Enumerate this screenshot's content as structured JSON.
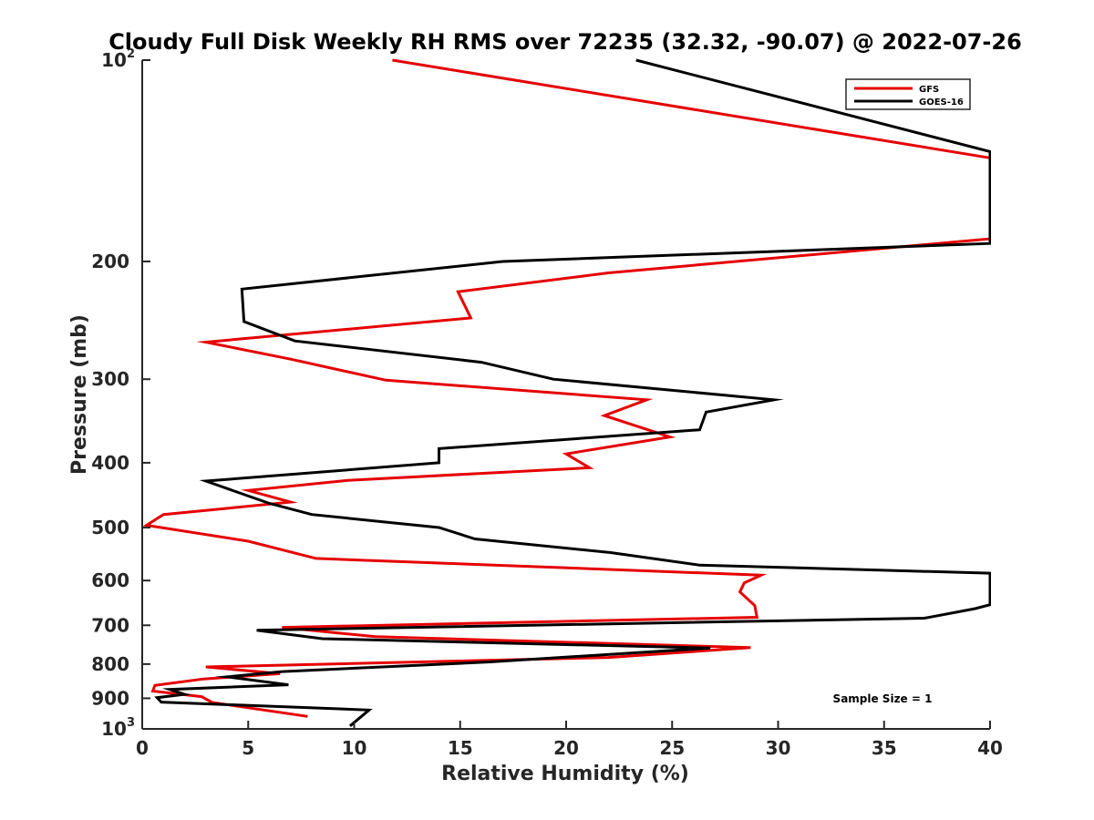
{
  "chart_data": {
    "type": "line",
    "title": "Cloudy Full Disk Weekly RH RMS over 72235 (32.32, -90.07) @ 2022-07-26",
    "xlabel": "Relative Humidity (%)",
    "ylabel": "Pressure (mb)",
    "xlim": [
      0,
      40
    ],
    "ylim": [
      100,
      1000
    ],
    "yscale": "log",
    "yreversed": true,
    "grid": false,
    "legend_position": "top-right",
    "x_ticks": [
      {
        "value": 0,
        "label": "0"
      },
      {
        "value": 5,
        "label": "5"
      },
      {
        "value": 10,
        "label": "10"
      },
      {
        "value": 15,
        "label": "15"
      },
      {
        "value": 20,
        "label": "20"
      },
      {
        "value": 25,
        "label": "25"
      },
      {
        "value": 30,
        "label": "30"
      },
      {
        "value": 35,
        "label": "35"
      },
      {
        "value": 40,
        "label": "40"
      }
    ],
    "y_ticks": [
      {
        "value": 100,
        "label": "10",
        "sup": "2"
      },
      {
        "value": 200,
        "label": "200"
      },
      {
        "value": 300,
        "label": "300"
      },
      {
        "value": 400,
        "label": "400"
      },
      {
        "value": 500,
        "label": "500"
      },
      {
        "value": 600,
        "label": "600"
      },
      {
        "value": 700,
        "label": "700"
      },
      {
        "value": 800,
        "label": "800"
      },
      {
        "value": 900,
        "label": "900"
      },
      {
        "value": 1000,
        "label": "10",
        "sup": "3"
      }
    ],
    "annotation": "Sample Size = 1",
    "series": [
      {
        "name": "GFS",
        "color": "#e60000",
        "points": [
          [
            11.8,
            100
          ],
          [
            40,
            140
          ],
          [
            40,
            185
          ],
          [
            22,
            208
          ],
          [
            14.9,
            222
          ],
          [
            15.5,
            243
          ],
          [
            3.0,
            264
          ],
          [
            7,
            280
          ],
          [
            11.5,
            301
          ],
          [
            23.8,
            322
          ],
          [
            21.8,
            340
          ],
          [
            24.9,
            366
          ],
          [
            20.0,
            388
          ],
          [
            21.1,
            407
          ],
          [
            9.7,
            425
          ],
          [
            5.0,
            440
          ],
          [
            7.0,
            458
          ],
          [
            1.0,
            478
          ],
          [
            0.2,
            496
          ],
          [
            5,
            524
          ],
          [
            8.2,
            556
          ],
          [
            29.2,
            589
          ],
          [
            28.4,
            605
          ],
          [
            28.2,
            624
          ],
          [
            28.9,
            654
          ],
          [
            29.0,
            681
          ],
          [
            6.6,
            705
          ],
          [
            11.0,
            728
          ],
          [
            28.7,
            756
          ],
          [
            22,
            782
          ],
          [
            3,
            808
          ],
          [
            6.5,
            827
          ],
          [
            2.9,
            842
          ],
          [
            0.6,
            861
          ],
          [
            0.5,
            878
          ],
          [
            2.8,
            895
          ],
          [
            3.3,
            913
          ],
          [
            7.8,
            958
          ]
        ]
      },
      {
        "name": "GOES-16",
        "color": "#000000",
        "points": [
          [
            23.3,
            100
          ],
          [
            40,
            137
          ],
          [
            40,
            188
          ],
          [
            17.0,
            200
          ],
          [
            4.7,
            220
          ],
          [
            4.8,
            246
          ],
          [
            7.2,
            263
          ],
          [
            16.0,
            283
          ],
          [
            19.4,
            300
          ],
          [
            29.8,
            322
          ],
          [
            26.6,
            336
          ],
          [
            26.3,
            357
          ],
          [
            14.0,
            381
          ],
          [
            14.0,
            400
          ],
          [
            3.0,
            426
          ],
          [
            6.0,
            460
          ],
          [
            8.0,
            478
          ],
          [
            14.0,
            500
          ],
          [
            15.7,
            520
          ],
          [
            22.1,
            545
          ],
          [
            26.3,
            569
          ],
          [
            40,
            585
          ],
          [
            40,
            652
          ],
          [
            39.3,
            661
          ],
          [
            36.9,
            683
          ],
          [
            5.4,
            712
          ],
          [
            8.5,
            733
          ],
          [
            26.8,
            757
          ],
          [
            16.4,
            794
          ],
          [
            6.6,
            821
          ],
          [
            4.0,
            836
          ],
          [
            6.9,
            859
          ],
          [
            1.3,
            873
          ],
          [
            2.0,
            888
          ],
          [
            0.7,
            898
          ],
          [
            0.9,
            912
          ],
          [
            10.7,
            937
          ],
          [
            9.8,
            990
          ]
        ]
      }
    ]
  }
}
